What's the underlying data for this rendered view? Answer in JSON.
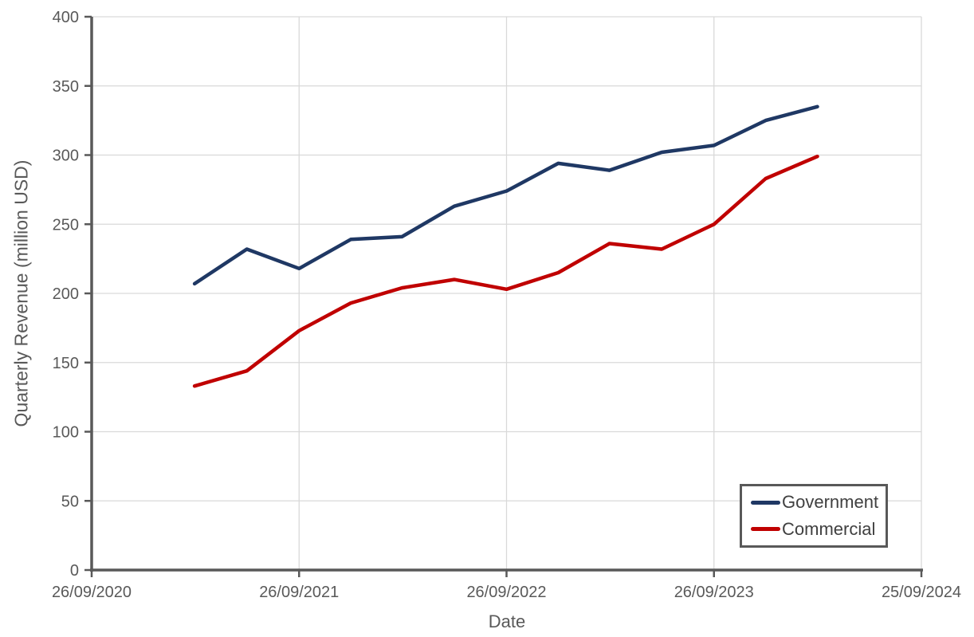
{
  "chart_data": {
    "type": "line",
    "title": "",
    "xlabel": "Date",
    "ylabel": "Quarterly Revenue (million USD)",
    "grid": true,
    "legend_position": "bottom-right",
    "x_axis": {
      "start_date": "2020-09-26",
      "end_date": "2024-09-25",
      "ticks": [
        {
          "label": "26/09/2020",
          "date": "2020-09-26"
        },
        {
          "label": "26/09/2021",
          "date": "2021-09-26"
        },
        {
          "label": "26/09/2022",
          "date": "2022-09-26"
        },
        {
          "label": "26/09/2023",
          "date": "2023-09-26"
        },
        {
          "label": "25/09/2024",
          "date": "2024-09-25"
        }
      ]
    },
    "y_axis": {
      "min": 0,
      "max": 400,
      "tick_interval": 50,
      "tick_labels": [
        "0",
        "50",
        "100",
        "150",
        "200",
        "250",
        "300",
        "350",
        "400"
      ]
    },
    "x_dates": [
      "2021-03-26",
      "2021-06-26",
      "2021-09-26",
      "2021-12-26",
      "2022-03-26",
      "2022-06-26",
      "2022-09-26",
      "2022-12-26",
      "2023-03-26",
      "2023-06-26",
      "2023-09-26",
      "2023-12-26",
      "2024-03-26"
    ],
    "series": [
      {
        "name": "Government",
        "color": "#1f3864",
        "values": [
          207,
          232,
          218,
          239,
          241,
          263,
          274,
          294,
          289,
          302,
          307,
          325,
          335
        ]
      },
      {
        "name": "Commercial",
        "color": "#c00000",
        "values": [
          133,
          144,
          173,
          193,
          204,
          210,
          203,
          215,
          236,
          232,
          250,
          283,
          299
        ]
      }
    ]
  },
  "styles": {
    "background": "#ffffff",
    "gridline_color": "#d9d9d9",
    "axis_color": "#595959",
    "tick_label_color": "#595959",
    "axis_title_color": "#595959",
    "legend_border_color": "#595959",
    "legend_text_color": "#404040",
    "series_line_width": 4.5
  }
}
